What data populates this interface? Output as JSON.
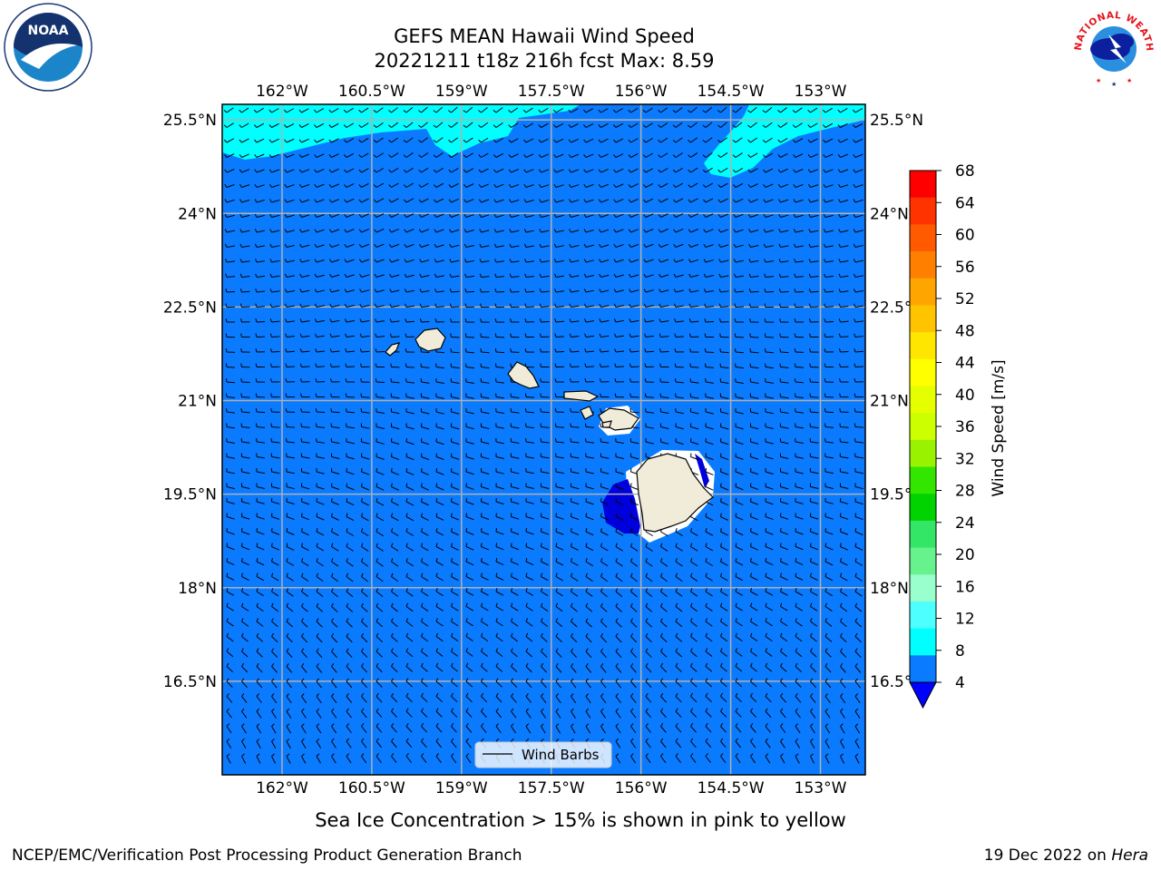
{
  "title": {
    "line1": "GEFS MEAN Hawaii Wind Speed",
    "line2": "20221211 t18z 216h fcst   Max: 8.59"
  },
  "map": {
    "lon_labels": [
      "162°W",
      "160.5°W",
      "159°W",
      "157.5°W",
      "156°W",
      "154.5°W",
      "153°W"
    ],
    "lat_labels": [
      "25.5°N",
      "24°N",
      "22.5°N",
      "21°N",
      "19.5°N",
      "18°N",
      "16.5°N"
    ],
    "lon_range": [
      -163,
      -152.25
    ],
    "lat_range": [
      15,
      25.75
    ],
    "colors": {
      "ocean": "#0a7bff",
      "light": "#00ffff",
      "dark": "#0000dd",
      "land": "#f0ecd9",
      "grid": "#b0b0b0"
    },
    "legend_label": "Wind Barbs"
  },
  "colorbar": {
    "label": "Wind Speed [m/s]",
    "ticks": [
      "68",
      "64",
      "60",
      "56",
      "52",
      "48",
      "44",
      "40",
      "36",
      "32",
      "28",
      "24",
      "20",
      "16",
      "12",
      "8",
      "4"
    ],
    "colors": [
      "#ff0000",
      "#ff3300",
      "#ff5a00",
      "#ff8000",
      "#ffa500",
      "#ffc400",
      "#ffe600",
      "#ffff00",
      "#e6ff00",
      "#ccff00",
      "#99f200",
      "#33e600",
      "#00d300",
      "#33e666",
      "#66f28c",
      "#99ffcc",
      "#4dffff",
      "#00ffff",
      "#0a7bff"
    ],
    "under_color": "#0000ff"
  },
  "caption": "Sea Ice Concentration > 15% is shown in pink to yellow",
  "footer": {
    "left": "NCEP/EMC/Verification Post Processing Product Generation Branch",
    "right": "19 Dec 2022 on",
    "host": "Hera"
  },
  "logos": {
    "noaa": "NOAA",
    "nws": "NATIONAL WEATHER SERVICE"
  }
}
